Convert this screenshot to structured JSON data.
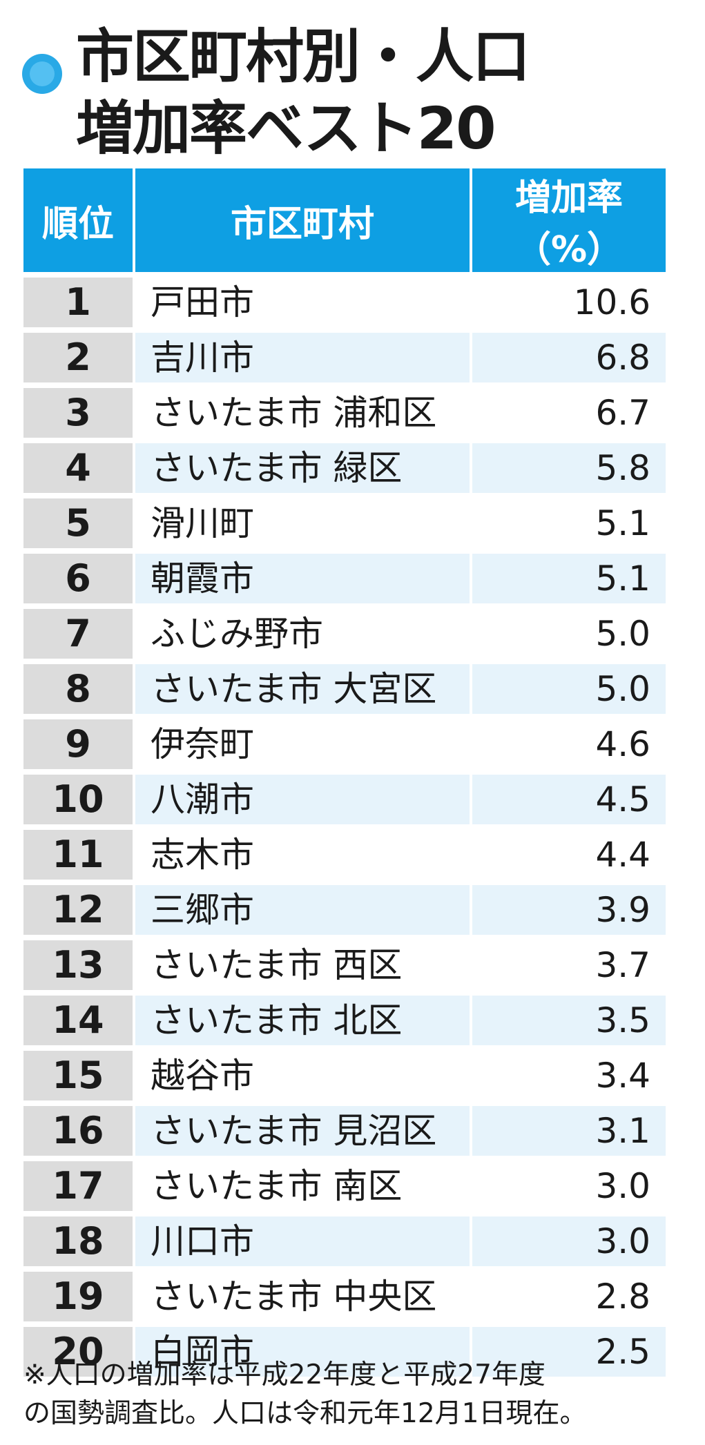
{
  "colors": {
    "header_bg": "#0e9fe3",
    "rank_bg": "#dcdcdc",
    "row_alt_bg": "#e6f3fb",
    "bullet": "#29a9e6"
  },
  "title": {
    "line1": "市区町村別・人口",
    "line2": "増加率ベスト20"
  },
  "chart_data": {
    "type": "table",
    "columns": [
      "順位",
      "市区町村",
      "増加率（%）"
    ],
    "rows": [
      {
        "rank": "1",
        "name": "戸田市",
        "rate": "10.6"
      },
      {
        "rank": "2",
        "name": "吉川市",
        "rate": "6.8"
      },
      {
        "rank": "3",
        "name": "さいたま市 浦和区",
        "rate": "6.7"
      },
      {
        "rank": "4",
        "name": "さいたま市 緑区",
        "rate": "5.8"
      },
      {
        "rank": "5",
        "name": "滑川町",
        "rate": "5.1"
      },
      {
        "rank": "6",
        "name": "朝霞市",
        "rate": "5.1"
      },
      {
        "rank": "7",
        "name": "ふじみ野市",
        "rate": "5.0"
      },
      {
        "rank": "8",
        "name": "さいたま市 大宮区",
        "rate": "5.0"
      },
      {
        "rank": "9",
        "name": "伊奈町",
        "rate": "4.6"
      },
      {
        "rank": "10",
        "name": "八潮市",
        "rate": "4.5"
      },
      {
        "rank": "11",
        "name": "志木市",
        "rate": "4.4"
      },
      {
        "rank": "12",
        "name": "三郷市",
        "rate": "3.9"
      },
      {
        "rank": "13",
        "name": "さいたま市 西区",
        "rate": "3.7"
      },
      {
        "rank": "14",
        "name": "さいたま市 北区",
        "rate": "3.5"
      },
      {
        "rank": "15",
        "name": "越谷市",
        "rate": "3.4"
      },
      {
        "rank": "16",
        "name": "さいたま市 見沼区",
        "rate": "3.1"
      },
      {
        "rank": "17",
        "name": "さいたま市 南区",
        "rate": "3.0"
      },
      {
        "rank": "18",
        "name": "川口市",
        "rate": "3.0"
      },
      {
        "rank": "19",
        "name": "さいたま市 中央区",
        "rate": "2.8"
      },
      {
        "rank": "20",
        "name": "白岡市",
        "rate": "2.5"
      }
    ]
  },
  "note": {
    "line1": "※人口の増加率は平成22年度と平成27年度",
    "line2": "の国勢調査比。人口は令和元年12月1日現在。"
  }
}
